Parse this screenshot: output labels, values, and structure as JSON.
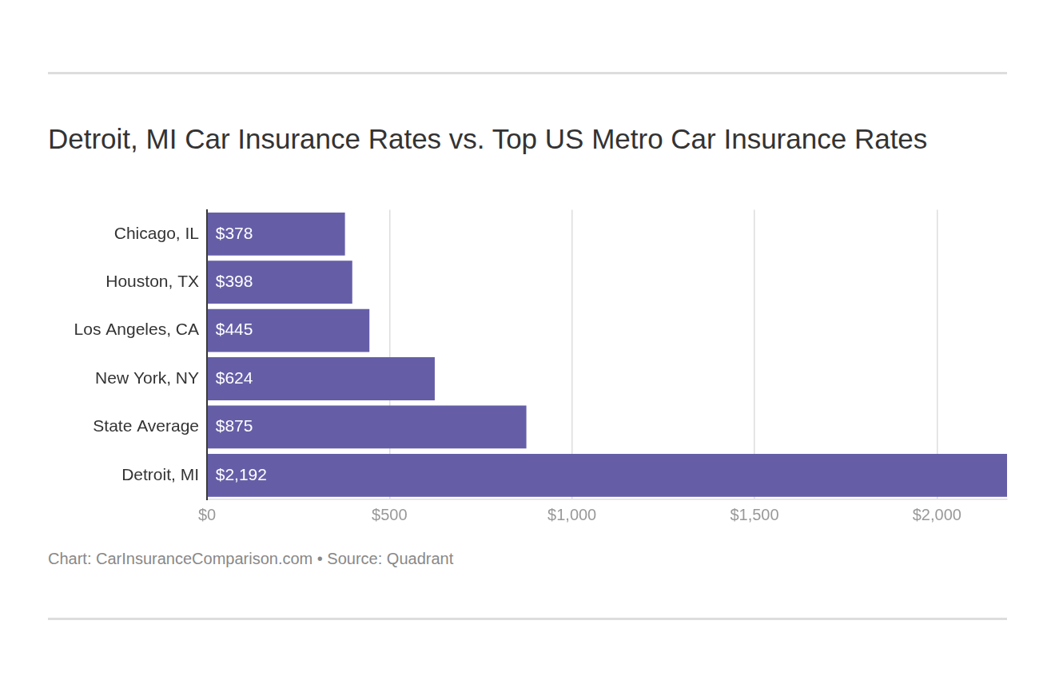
{
  "chart_data": {
    "type": "bar",
    "orientation": "horizontal",
    "title": "Detroit, MI Car Insurance Rates vs. Top US Metro Car Insurance Rates",
    "source": "Chart: CarInsuranceComparison.com • Source: Quadrant",
    "categories": [
      "Chicago, IL",
      "Houston, TX",
      "Los Angeles, CA",
      "New York, NY",
      "State Average",
      "Detroit, MI"
    ],
    "values": [
      378,
      398,
      445,
      624,
      875,
      2192
    ],
    "value_labels": [
      "$378",
      "$398",
      "$445",
      "$624",
      "$875",
      "$2,192"
    ],
    "data_labels": true,
    "color": "#655ea7",
    "xlim": [
      0,
      2192
    ],
    "xticks": [
      {
        "value": 0,
        "label": "$0"
      },
      {
        "value": 500,
        "label": "$500"
      },
      {
        "value": 1000,
        "label": "$1,000"
      },
      {
        "value": 1500,
        "label": "$1,500"
      },
      {
        "value": 2000,
        "label": "$2,000"
      }
    ],
    "grid": true
  }
}
